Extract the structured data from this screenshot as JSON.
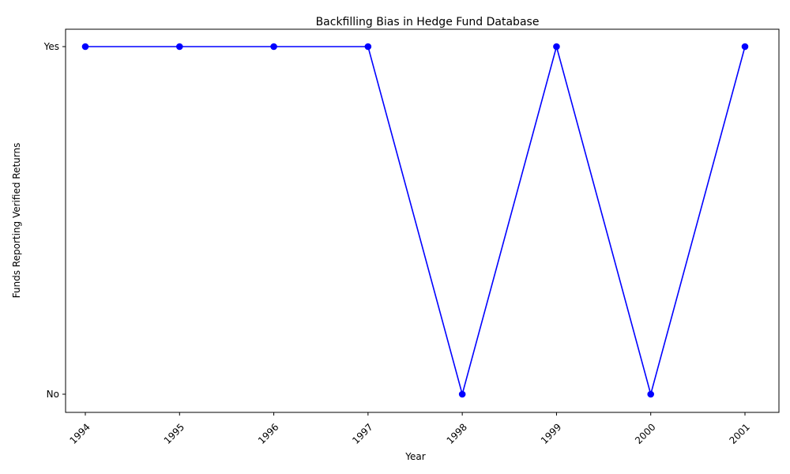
{
  "chart_data": {
    "type": "line",
    "title": "Backfilling Bias in Hedge Fund Database",
    "xlabel": "Year",
    "ylabel": "Funds Reporting Verified Returns",
    "categories": [
      "1994",
      "1995",
      "1996",
      "1997",
      "1998",
      "1999",
      "2000",
      "2001"
    ],
    "y_categories": [
      "No",
      "Yes"
    ],
    "series": [
      {
        "values": [
          "Yes",
          "Yes",
          "Yes",
          "Yes",
          "No",
          "Yes",
          "No",
          "Yes"
        ],
        "color": "#0000ff",
        "marker": "circle"
      }
    ],
    "grid": false,
    "legend": "none"
  }
}
